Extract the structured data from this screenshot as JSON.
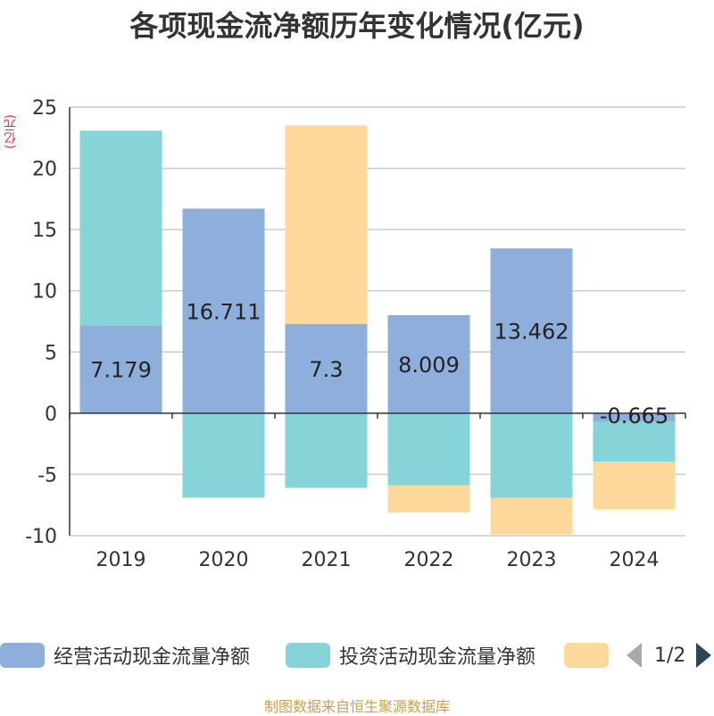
{
  "title": "各项现金流净额历年变化情况(亿元)",
  "unit_label": "(亿元)",
  "source": "制图数据来自恒生聚源数据库",
  "legend": {
    "items": [
      {
        "label": "经营活动现金流量净额",
        "color": "#8eaedb"
      },
      {
        "label": "投资活动现金流量净额",
        "color": "#86d4d8"
      },
      {
        "label": "",
        "color": "#fed99b"
      }
    ],
    "page": "1/2"
  },
  "chart_data": {
    "type": "bar",
    "stacked": true,
    "categories": [
      "2019",
      "2020",
      "2021",
      "2022",
      "2023",
      "2024"
    ],
    "ylim": [
      -10,
      25
    ],
    "yticks": [
      -10,
      -5,
      0,
      5,
      10,
      15,
      20,
      25
    ],
    "grid": true,
    "legend_position": "bottom",
    "series": [
      {
        "name": "经营活动现金流量净额",
        "color": "#8eaedb",
        "values": [
          7.179,
          16.711,
          7.3,
          8.009,
          13.462,
          -0.665
        ],
        "labels": [
          "7.179",
          "16.711",
          "7.3",
          "8.009",
          "13.462",
          "-0.665"
        ]
      },
      {
        "name": "投资活动现金流量净额",
        "color": "#86d4d8",
        "values": [
          15.9,
          -6.9,
          -6.1,
          -5.9,
          -6.9,
          -3.3
        ]
      },
      {
        "color": "#fed99b",
        "values": [
          0,
          0,
          16.2,
          -2.2,
          -3.0,
          -3.9
        ]
      }
    ]
  }
}
